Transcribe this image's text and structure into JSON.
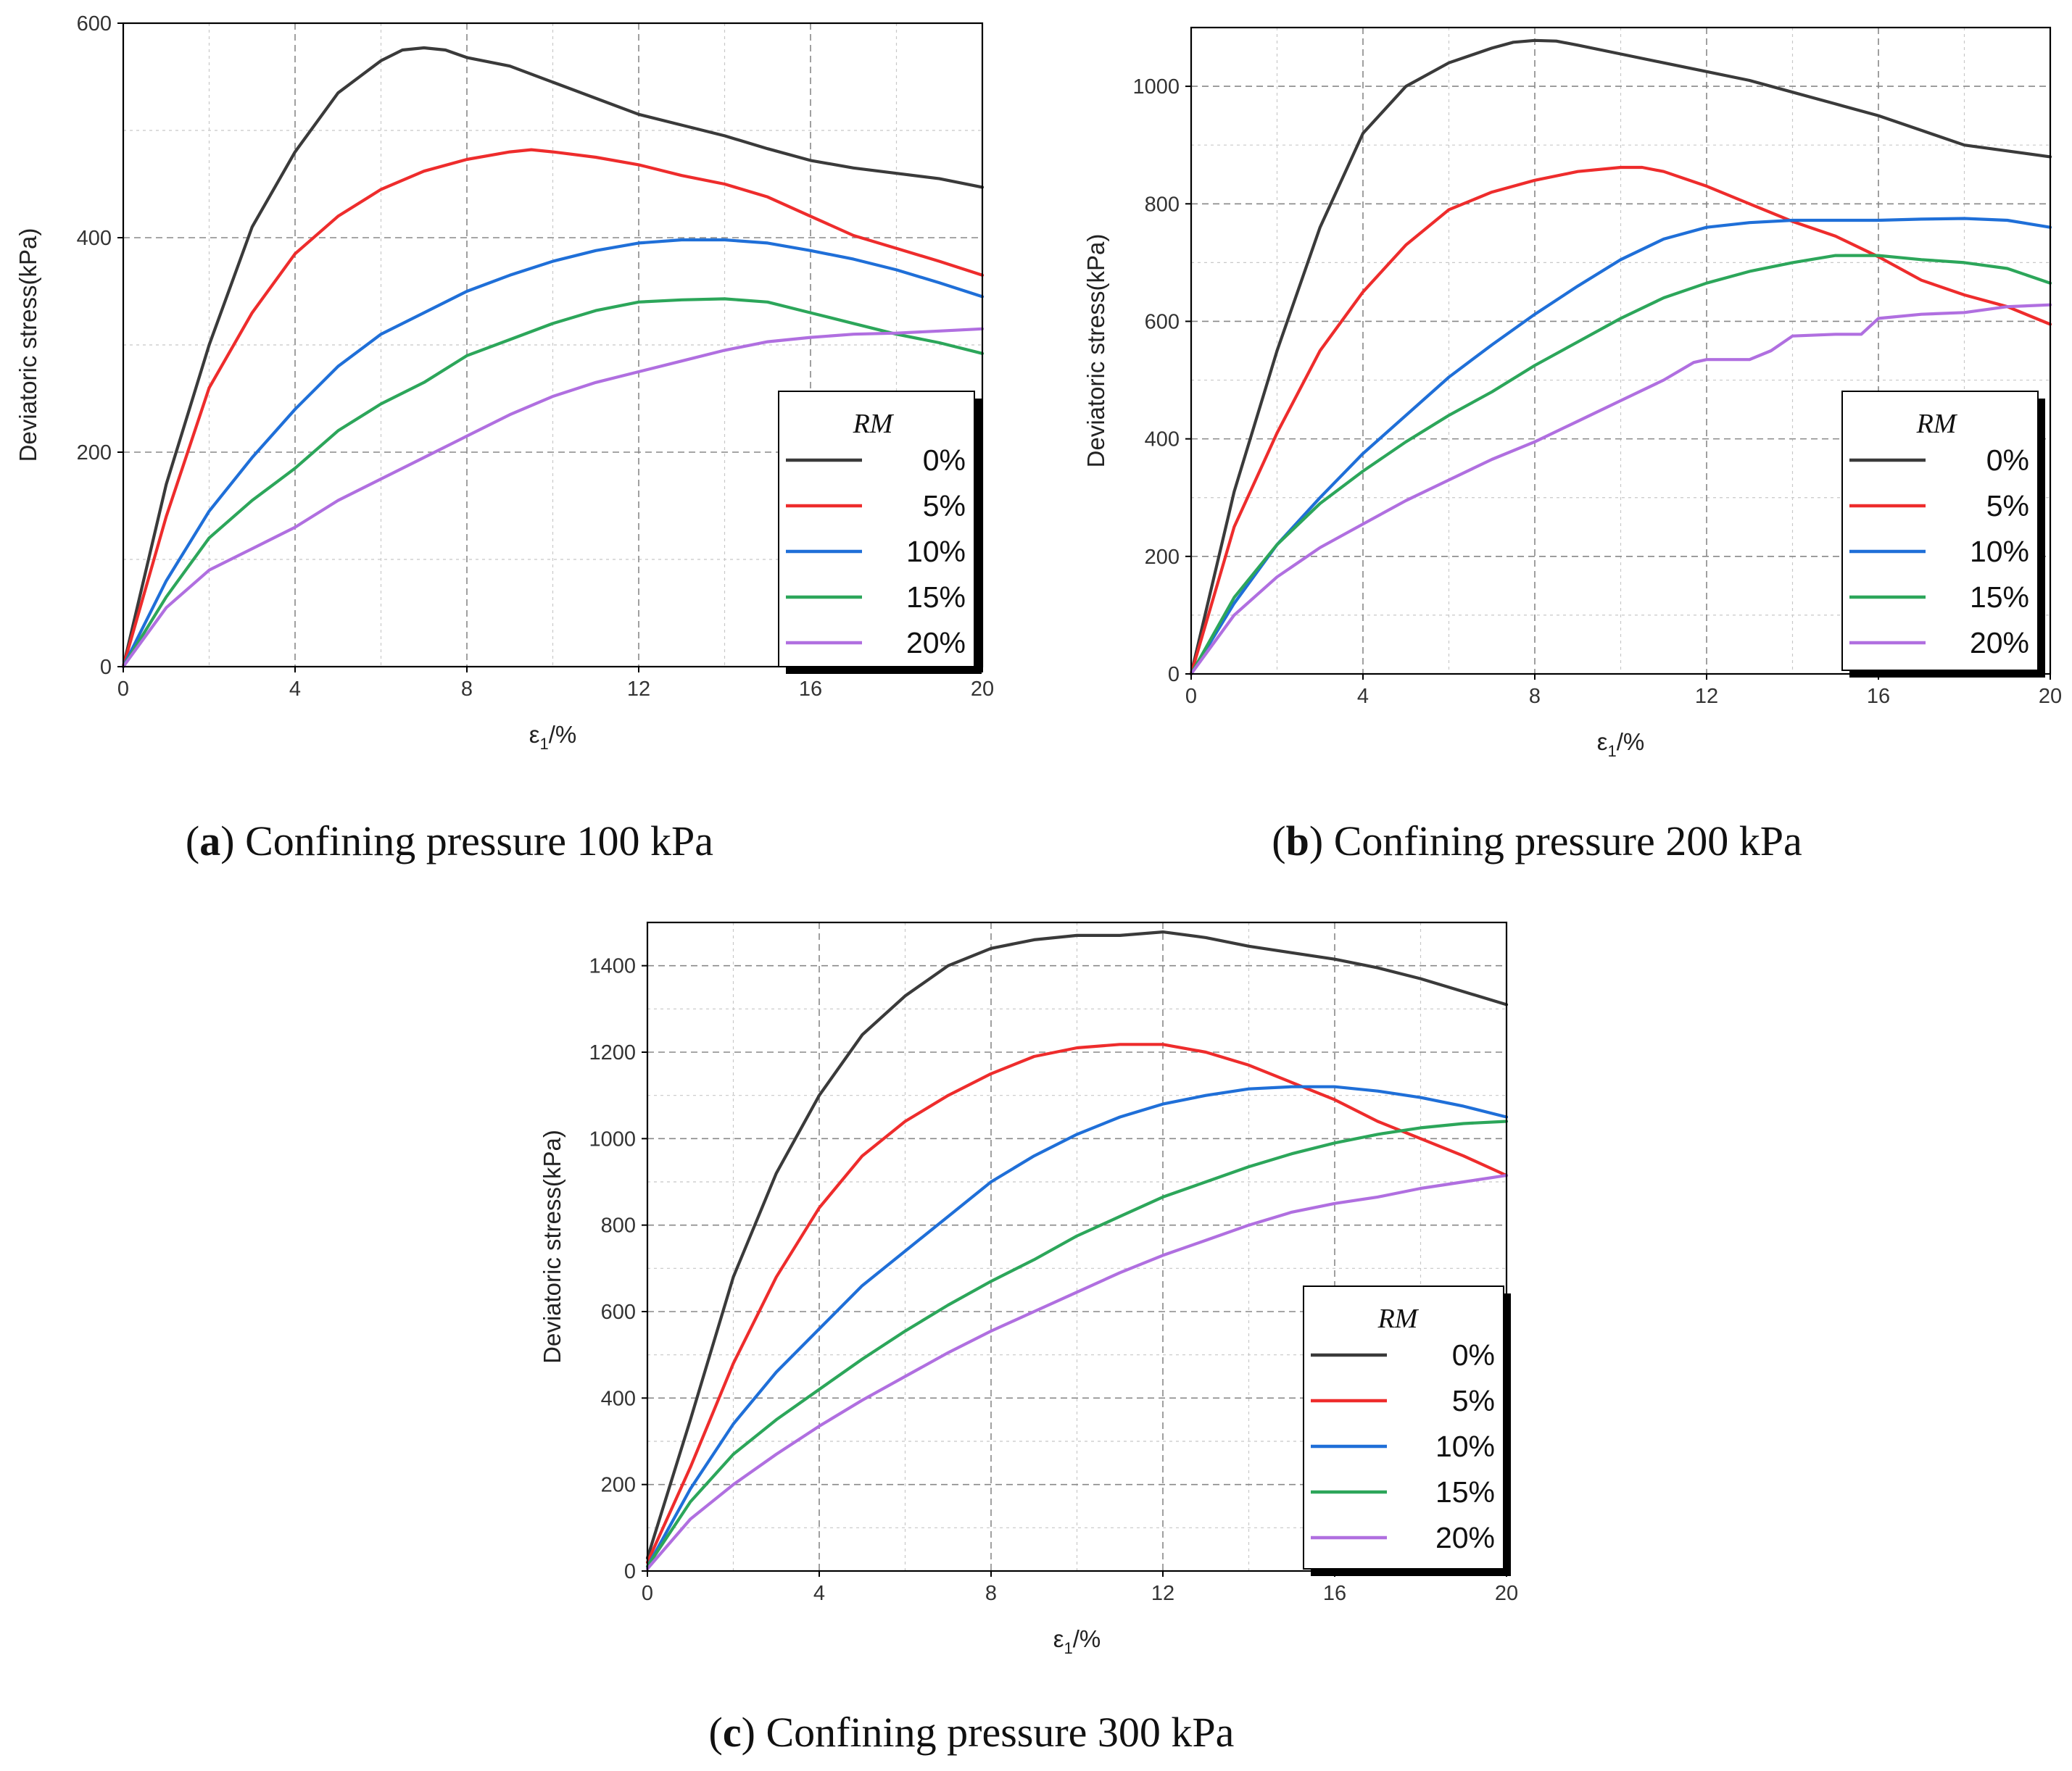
{
  "figure": {
    "series_colors": [
      "#3a3a3a",
      "#ee2c2c",
      "#1f6fd8",
      "#2ca65a",
      "#b06fe0"
    ]
  },
  "chart_data": [
    {
      "id": "a",
      "type": "line",
      "caption_letter": "a",
      "caption_text": "Confining pressure 100 kPa",
      "xlabel_main": "ε",
      "xlabel_sub": "1",
      "xlabel_tail": "/%",
      "ylabel": "Deviatoric stress(kPa)",
      "xlim": [
        0,
        20
      ],
      "ylim": [
        0,
        600
      ],
      "xticks": [
        0,
        4,
        8,
        12,
        16,
        20
      ],
      "yticks": [
        0,
        200,
        400,
        600
      ],
      "legend_title": "RM",
      "series": [
        {
          "name": "0%",
          "x": [
            0,
            1,
            2,
            3,
            4,
            5,
            6,
            6.5,
            7,
            7.5,
            8,
            9,
            10,
            11,
            12,
            13,
            14,
            15,
            16,
            17,
            18,
            19,
            20
          ],
          "y": [
            0,
            170,
            300,
            410,
            480,
            535,
            565,
            575,
            577,
            575,
            568,
            560,
            545,
            530,
            515,
            505,
            495,
            483,
            472,
            465,
            460,
            455,
            447
          ]
        },
        {
          "name": "5%",
          "x": [
            0,
            1,
            2,
            3,
            4,
            5,
            6,
            7,
            8,
            9,
            9.5,
            10,
            11,
            12,
            13,
            14,
            15,
            16,
            17,
            18,
            19,
            20
          ],
          "y": [
            0,
            140,
            260,
            330,
            385,
            420,
            445,
            462,
            473,
            480,
            482,
            480,
            475,
            468,
            458,
            450,
            438,
            420,
            402,
            390,
            378,
            365
          ]
        },
        {
          "name": "10%",
          "x": [
            0,
            1,
            2,
            3,
            4,
            5,
            6,
            7,
            8,
            9,
            10,
            11,
            12,
            13,
            14,
            15,
            16,
            17,
            18,
            19,
            20
          ],
          "y": [
            0,
            80,
            145,
            195,
            240,
            280,
            310,
            330,
            350,
            365,
            378,
            388,
            395,
            398,
            398,
            395,
            388,
            380,
            370,
            358,
            345
          ]
        },
        {
          "name": "15%",
          "x": [
            0,
            1,
            2,
            3,
            4,
            5,
            6,
            7,
            8,
            9,
            10,
            11,
            12,
            13,
            14,
            15,
            16,
            17,
            18,
            19,
            20
          ],
          "y": [
            0,
            65,
            120,
            155,
            185,
            220,
            245,
            265,
            290,
            305,
            320,
            332,
            340,
            342,
            343,
            340,
            330,
            320,
            310,
            302,
            292
          ]
        },
        {
          "name": "20%",
          "x": [
            0,
            1,
            2,
            3,
            4,
            5,
            6,
            7,
            8,
            9,
            10,
            11,
            12,
            13,
            14,
            15,
            16,
            17,
            18,
            19,
            20
          ],
          "y": [
            0,
            55,
            90,
            110,
            130,
            155,
            175,
            195,
            215,
            235,
            252,
            265,
            275,
            285,
            295,
            303,
            307,
            310,
            311,
            313,
            315
          ]
        }
      ]
    },
    {
      "id": "b",
      "type": "line",
      "caption_letter": "b",
      "caption_text": "Confining pressure 200 kPa",
      "xlabel_main": "ε",
      "xlabel_sub": "1",
      "xlabel_tail": "/%",
      "ylabel": "Deviatoric stress(kPa)",
      "xlim": [
        0,
        20
      ],
      "ylim": [
        0,
        1100
      ],
      "xticks": [
        0,
        4,
        8,
        12,
        16,
        20
      ],
      "yticks": [
        0,
        200,
        400,
        600,
        800,
        1000
      ],
      "legend_title": "RM",
      "series": [
        {
          "name": "0%",
          "x": [
            0,
            1,
            2,
            3,
            4,
            5,
            6,
            7,
            7.5,
            8,
            8.5,
            9,
            10,
            11,
            12,
            13,
            14,
            15,
            16,
            17,
            18,
            19,
            20
          ],
          "y": [
            0,
            310,
            550,
            760,
            920,
            1000,
            1040,
            1065,
            1075,
            1078,
            1077,
            1070,
            1055,
            1040,
            1025,
            1010,
            990,
            970,
            950,
            925,
            900,
            890,
            880
          ]
        },
        {
          "name": "5%",
          "x": [
            0,
            1,
            2,
            3,
            4,
            5,
            6,
            7,
            8,
            9,
            10,
            10.5,
            11,
            12,
            13,
            14,
            15,
            16,
            17,
            18,
            19,
            20
          ],
          "y": [
            0,
            250,
            410,
            550,
            650,
            730,
            790,
            820,
            840,
            855,
            862,
            862,
            855,
            830,
            800,
            770,
            745,
            710,
            670,
            645,
            625,
            595
          ]
        },
        {
          "name": "10%",
          "x": [
            0,
            1,
            2,
            3,
            4,
            5,
            6,
            7,
            8,
            9,
            10,
            11,
            12,
            13,
            14,
            15,
            16,
            17,
            18,
            19,
            20
          ],
          "y": [
            0,
            120,
            220,
            300,
            375,
            440,
            505,
            560,
            612,
            660,
            705,
            740,
            760,
            768,
            772,
            772,
            772,
            774,
            775,
            772,
            760
          ]
        },
        {
          "name": "15%",
          "x": [
            0,
            1,
            2,
            3,
            4,
            5,
            6,
            7,
            8,
            9,
            10,
            11,
            12,
            13,
            14,
            15,
            16,
            17,
            18,
            19,
            20
          ],
          "y": [
            0,
            130,
            220,
            290,
            345,
            395,
            440,
            480,
            525,
            565,
            605,
            640,
            665,
            685,
            700,
            712,
            712,
            705,
            700,
            690,
            665
          ]
        },
        {
          "name": "20%",
          "x": [
            0,
            1,
            2,
            3,
            4,
            5,
            6,
            7,
            8,
            9,
            10,
            11,
            11.7,
            12,
            13,
            13.5,
            14,
            15,
            15.6,
            16,
            17,
            18,
            19,
            20
          ],
          "y": [
            0,
            100,
            165,
            215,
            255,
            295,
            330,
            365,
            395,
            430,
            465,
            500,
            530,
            535,
            535,
            550,
            575,
            578,
            578,
            605,
            612,
            615,
            625,
            628
          ]
        }
      ]
    },
    {
      "id": "c",
      "type": "line",
      "caption_letter": "c",
      "caption_text": "Confining pressure 300 kPa",
      "xlabel_main": "ε",
      "xlabel_sub": "1",
      "xlabel_tail": "/%",
      "ylabel": "Deviatoric stress(kPa)",
      "xlim": [
        0,
        20
      ],
      "ylim": [
        0,
        1500
      ],
      "xticks": [
        0,
        4,
        8,
        12,
        16,
        20
      ],
      "yticks": [
        0,
        200,
        400,
        600,
        800,
        1000,
        1200,
        1400
      ],
      "legend_title": "RM",
      "series": [
        {
          "name": "0%",
          "x": [
            0,
            1,
            2,
            3,
            4,
            5,
            6,
            7,
            8,
            9,
            10,
            11,
            12,
            13,
            14,
            15,
            16,
            17,
            18,
            19,
            20
          ],
          "y": [
            30,
            350,
            680,
            920,
            1100,
            1240,
            1330,
            1400,
            1440,
            1460,
            1470,
            1470,
            1478,
            1465,
            1445,
            1430,
            1415,
            1395,
            1370,
            1340,
            1310
          ]
        },
        {
          "name": "5%",
          "x": [
            0,
            1,
            2,
            3,
            4,
            5,
            6,
            7,
            8,
            9,
            10,
            11,
            12,
            13,
            14,
            15,
            16,
            17,
            18,
            19,
            20
          ],
          "y": [
            20,
            240,
            480,
            680,
            840,
            960,
            1040,
            1100,
            1150,
            1190,
            1210,
            1218,
            1218,
            1200,
            1170,
            1130,
            1090,
            1040,
            1000,
            960,
            915
          ]
        },
        {
          "name": "10%",
          "x": [
            0,
            1,
            2,
            3,
            4,
            5,
            6,
            7,
            8,
            9,
            10,
            11,
            12,
            13,
            14,
            15,
            16,
            17,
            18,
            19,
            20
          ],
          "y": [
            10,
            190,
            340,
            460,
            560,
            660,
            740,
            820,
            900,
            960,
            1010,
            1050,
            1080,
            1100,
            1115,
            1120,
            1120,
            1110,
            1095,
            1075,
            1050
          ]
        },
        {
          "name": "15%",
          "x": [
            0,
            1,
            2,
            3,
            4,
            5,
            6,
            7,
            8,
            9,
            10,
            11,
            12,
            13,
            14,
            15,
            16,
            17,
            18,
            19,
            20
          ],
          "y": [
            10,
            160,
            270,
            350,
            420,
            490,
            555,
            615,
            670,
            720,
            775,
            820,
            865,
            900,
            935,
            965,
            990,
            1010,
            1025,
            1035,
            1040
          ]
        },
        {
          "name": "20%",
          "x": [
            0,
            1,
            2,
            3,
            4,
            5,
            6,
            7,
            8,
            9,
            10,
            11,
            12,
            13,
            14,
            15,
            16,
            17,
            18,
            19,
            20
          ],
          "y": [
            5,
            120,
            200,
            270,
            335,
            395,
            450,
            505,
            555,
            600,
            645,
            690,
            730,
            765,
            800,
            830,
            850,
            865,
            885,
            900,
            915
          ]
        }
      ]
    }
  ]
}
